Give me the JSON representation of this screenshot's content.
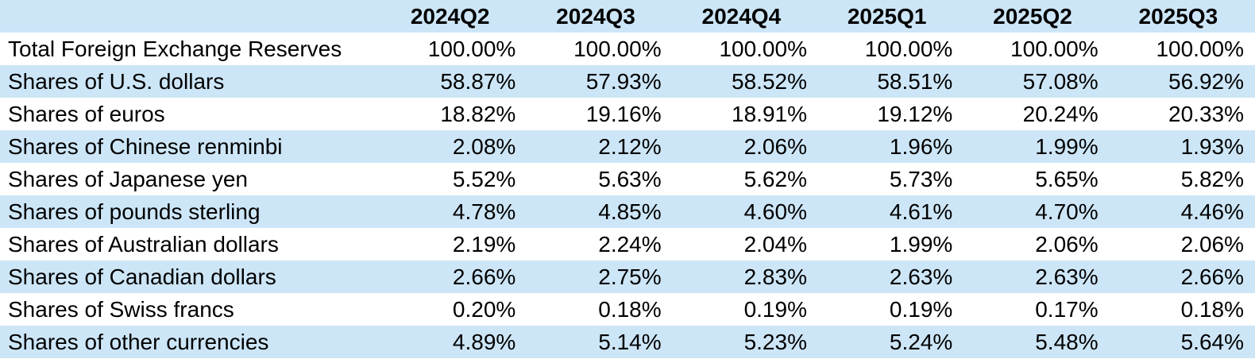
{
  "colors": {
    "band_blue": "#CDE6F7",
    "row_white": "#FFFFFF",
    "text": "#000000"
  },
  "table": {
    "corner_label": "",
    "columns": [
      "2024Q2",
      "2024Q3",
      "2024Q4",
      "2025Q1",
      "2025Q2",
      "2025Q3"
    ],
    "rows": [
      {
        "label": "Total Foreign Exchange Reserves",
        "values": [
          "100.00%",
          "100.00%",
          "100.00%",
          "100.00%",
          "100.00%",
          "100.00%"
        ]
      },
      {
        "label": "Shares of U.S. dollars",
        "values": [
          "58.87%",
          "57.93%",
          "58.52%",
          "58.51%",
          "57.08%",
          "56.92%"
        ]
      },
      {
        "label": "Shares of euros",
        "values": [
          "18.82%",
          "19.16%",
          "18.91%",
          "19.12%",
          "20.24%",
          "20.33%"
        ]
      },
      {
        "label": "Shares of Chinese renminbi",
        "values": [
          "2.08%",
          "2.12%",
          "2.06%",
          "1.96%",
          "1.99%",
          "1.93%"
        ]
      },
      {
        "label": "Shares of Japanese yen",
        "values": [
          "5.52%",
          "5.63%",
          "5.62%",
          "5.73%",
          "5.65%",
          "5.82%"
        ]
      },
      {
        "label": "Shares of pounds sterling",
        "values": [
          "4.78%",
          "4.85%",
          "4.60%",
          "4.61%",
          "4.70%",
          "4.46%"
        ]
      },
      {
        "label": "Shares of Australian dollars",
        "values": [
          "2.19%",
          "2.24%",
          "2.04%",
          "1.99%",
          "2.06%",
          "2.06%"
        ]
      },
      {
        "label": "Shares of Canadian dollars",
        "values": [
          "2.66%",
          "2.75%",
          "2.83%",
          "2.63%",
          "2.63%",
          "2.66%"
        ]
      },
      {
        "label": "Shares of Swiss francs",
        "values": [
          "0.20%",
          "0.18%",
          "0.19%",
          "0.19%",
          "0.17%",
          "0.18%"
        ]
      },
      {
        "label": "Shares of other currencies",
        "values": [
          "4.89%",
          "5.14%",
          "5.23%",
          "5.24%",
          "5.48%",
          "5.64%"
        ]
      }
    ]
  },
  "chart_data": {
    "type": "table",
    "unit": "%",
    "columns": [
      "2024Q2",
      "2024Q3",
      "2024Q4",
      "2025Q1",
      "2025Q2",
      "2025Q3"
    ],
    "rows": [
      {
        "label": "Total Foreign Exchange Reserves",
        "values": [
          100.0,
          100.0,
          100.0,
          100.0,
          100.0,
          100.0
        ]
      },
      {
        "label": "Shares of U.S. dollars",
        "values": [
          58.87,
          57.93,
          58.52,
          58.51,
          57.08,
          56.92
        ]
      },
      {
        "label": "Shares of euros",
        "values": [
          18.82,
          19.16,
          18.91,
          19.12,
          20.24,
          20.33
        ]
      },
      {
        "label": "Shares of Chinese renminbi",
        "values": [
          2.08,
          2.12,
          2.06,
          1.96,
          1.99,
          1.93
        ]
      },
      {
        "label": "Shares of Japanese yen",
        "values": [
          5.52,
          5.63,
          5.62,
          5.73,
          5.65,
          5.82
        ]
      },
      {
        "label": "Shares of pounds sterling",
        "values": [
          4.78,
          4.85,
          4.6,
          4.61,
          4.7,
          4.46
        ]
      },
      {
        "label": "Shares of Australian dollars",
        "values": [
          2.19,
          2.24,
          2.04,
          1.99,
          2.06,
          2.06
        ]
      },
      {
        "label": "Shares of Canadian dollars",
        "values": [
          2.66,
          2.75,
          2.83,
          2.63,
          2.63,
          2.66
        ]
      },
      {
        "label": "Shares of Swiss francs",
        "values": [
          0.2,
          0.18,
          0.19,
          0.19,
          0.17,
          0.18
        ]
      },
      {
        "label": "Shares of other currencies",
        "values": [
          4.89,
          5.14,
          5.23,
          5.24,
          5.48,
          5.64
        ]
      }
    ]
  }
}
